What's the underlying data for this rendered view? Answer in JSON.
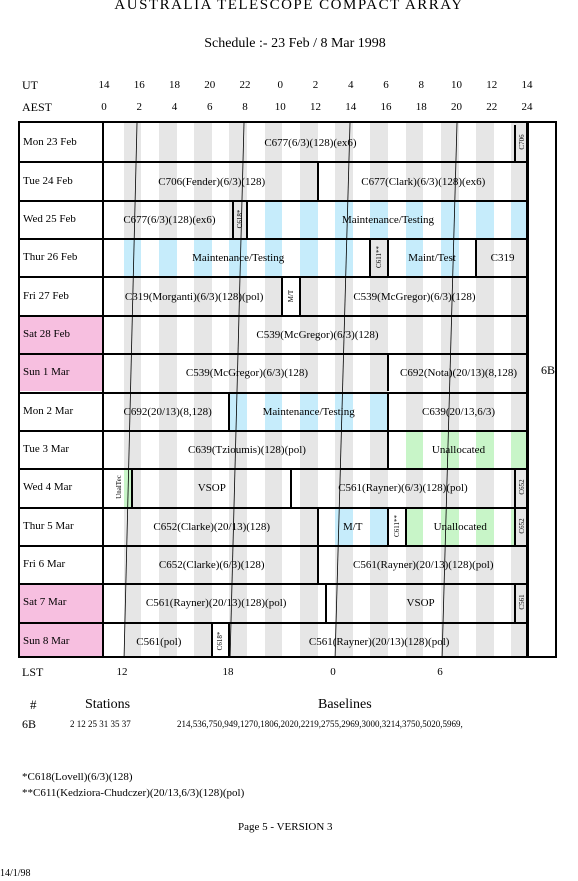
{
  "header": {
    "title": "AUSTRALIA TELESCOPE COMPACT ARRAY",
    "subtitle": "Schedule :- 23 Feb / 8 Mar 1998"
  },
  "axes": {
    "ut_label": "UT",
    "aest_label": "AEST",
    "lst_label": "LST",
    "ut_ticks": [
      "14",
      "16",
      "18",
      "20",
      "22",
      "0",
      "2",
      "4",
      "6",
      "8",
      "10",
      "12",
      "14"
    ],
    "aest_ticks": [
      "0",
      "2",
      "4",
      "6",
      "8",
      "10",
      "12",
      "14",
      "16",
      "18",
      "20",
      "22",
      "24"
    ],
    "lst_ticks": [
      "12",
      "18",
      "0",
      "6"
    ]
  },
  "config_label": "6B",
  "days": [
    {
      "label": "Mon  23  Feb",
      "weekend": false
    },
    {
      "label": "Tue  24  Feb",
      "weekend": false
    },
    {
      "label": "Wed  25  Feb",
      "weekend": false
    },
    {
      "label": "Thur  26  Feb",
      "weekend": false
    },
    {
      "label": "Fri   27  Feb",
      "weekend": false
    },
    {
      "label": "Sat   28  Feb",
      "weekend": true
    },
    {
      "label": "Sun    1  Mar",
      "weekend": true
    },
    {
      "label": "Mon   2  Mar",
      "weekend": false
    },
    {
      "label": "Tue    3  Mar",
      "weekend": false
    },
    {
      "label": "Wed   4  Mar",
      "weekend": false
    },
    {
      "label": "Thur  5  Mar",
      "weekend": false
    },
    {
      "label": "Fri    6  Mar",
      "weekend": false
    },
    {
      "label": "Sat    7  Mar",
      "weekend": true
    },
    {
      "label": "Sun    8  Mar",
      "weekend": true
    }
  ],
  "blocks": [
    {
      "row": 0,
      "start": 0,
      "end": 23.2,
      "label": "C677(6/3)(128)(ex6)",
      "kind": "normal"
    },
    {
      "row": 0,
      "start": 23.2,
      "end": 24,
      "label": "C706",
      "kind": "rot"
    },
    {
      "row": 1,
      "start": 0,
      "end": 12,
      "label": "C706(Fender)(6/3)(128)",
      "kind": "normal"
    },
    {
      "row": 1,
      "start": 12,
      "end": 24,
      "label": "C677(Clark)(6/3)(128)(ex6)",
      "kind": "normal"
    },
    {
      "row": 2,
      "start": 0,
      "end": 7.2,
      "label": "C677(6/3)(128)(ex6)",
      "kind": "normal"
    },
    {
      "row": 2,
      "start": 7.2,
      "end": 8,
      "label": "C618*",
      "kind": "rot"
    },
    {
      "row": 2,
      "start": 8,
      "end": 24,
      "label": "Maintenance/Testing",
      "kind": "maint"
    },
    {
      "row": 3,
      "start": 0,
      "end": 15,
      "label": "Maintenance/Testing",
      "kind": "maint"
    },
    {
      "row": 3,
      "start": 15,
      "end": 16,
      "label": "C611**",
      "kind": "rot"
    },
    {
      "row": 3,
      "start": 16,
      "end": 21,
      "label": "Maint/Test",
      "kind": "maint"
    },
    {
      "row": 3,
      "start": 21,
      "end": 24,
      "label": "C319",
      "kind": "normal"
    },
    {
      "row": 4,
      "start": 0,
      "end": 10,
      "label": "C319(Morganti)(6/3)(128)(pol)",
      "kind": "normal"
    },
    {
      "row": 4,
      "start": 10,
      "end": 11,
      "label": "M/T",
      "kind": "rotmaint"
    },
    {
      "row": 4,
      "start": 11,
      "end": 24,
      "label": "C539(McGregor)(6/3)(128)",
      "kind": "normal"
    },
    {
      "row": 5,
      "start": 0,
      "end": 24,
      "label": "C539(McGregor)(6/3)(128)",
      "kind": "normal"
    },
    {
      "row": 6,
      "start": 0,
      "end": 16,
      "label": "C539(McGregor)(6/3)(128)",
      "kind": "normal"
    },
    {
      "row": 6,
      "start": 16,
      "end": 24,
      "label": "C692(Nota)(20/13)(8,128)",
      "kind": "normal"
    },
    {
      "row": 7,
      "start": 0,
      "end": 7,
      "label": "C692(20/13)(8,128)",
      "kind": "normal"
    },
    {
      "row": 7,
      "start": 7,
      "end": 16,
      "label": "Maintenance/Testing",
      "kind": "maint"
    },
    {
      "row": 7,
      "start": 16,
      "end": 24,
      "label": "C639(20/13,6/3)",
      "kind": "normal"
    },
    {
      "row": 8,
      "start": 0,
      "end": 16,
      "label": "C639(Tzioumis)(128)(pol)",
      "kind": "normal"
    },
    {
      "row": 8,
      "start": 16,
      "end": 24,
      "label": "Unallocated",
      "kind": "unalloc"
    },
    {
      "row": 9,
      "start": 0,
      "end": 1.5,
      "label": "UnalTec",
      "kind": "rotunalloc"
    },
    {
      "row": 9,
      "start": 1.5,
      "end": 10.5,
      "label": "VSOP",
      "kind": "normal"
    },
    {
      "row": 9,
      "start": 10.5,
      "end": 23.2,
      "label": "C561(Rayner)(6/3)(128)(pol)",
      "kind": "normal"
    },
    {
      "row": 9,
      "start": 23.2,
      "end": 24,
      "label": "C652",
      "kind": "rot"
    },
    {
      "row": 10,
      "start": 0,
      "end": 12,
      "label": "C652(Clarke)(20/13)(128)",
      "kind": "normal"
    },
    {
      "row": 10,
      "start": 12,
      "end": 16,
      "label": "M/T",
      "kind": "maint"
    },
    {
      "row": 10,
      "start": 16,
      "end": 17,
      "label": "C611**",
      "kind": "rot"
    },
    {
      "row": 10,
      "start": 17,
      "end": 23.2,
      "label": "Unallocated",
      "kind": "unalloc"
    },
    {
      "row": 10,
      "start": 23.2,
      "end": 24,
      "label": "C652",
      "kind": "rot"
    },
    {
      "row": 11,
      "start": 0,
      "end": 12,
      "label": "C652(Clarke)(6/3)(128)",
      "kind": "normal"
    },
    {
      "row": 11,
      "start": 12,
      "end": 24,
      "label": "C561(Rayner)(20/13)(128)(pol)",
      "kind": "normal"
    },
    {
      "row": 12,
      "start": 0,
      "end": 12.5,
      "label": "C561(Rayner)(20/13)(128)(pol)",
      "kind": "normal"
    },
    {
      "row": 12,
      "start": 12.5,
      "end": 23.2,
      "label": "VSOP",
      "kind": "normal"
    },
    {
      "row": 12,
      "start": 23.2,
      "end": 24,
      "label": "C561",
      "kind": "rot"
    },
    {
      "row": 13,
      "start": 0,
      "end": 6,
      "label": "C561(pol)",
      "kind": "normal"
    },
    {
      "row": 13,
      "start": 6,
      "end": 7,
      "label": "C618*",
      "kind": "rot"
    },
    {
      "row": 13,
      "start": 7,
      "end": 24,
      "label": "C561(Rayner)(20/13)(128)(pol)",
      "kind": "normal"
    }
  ],
  "legend": {
    "hash_label": "#",
    "stations_header": "Stations",
    "baselines_header": "Baselines",
    "config": "6B",
    "stations": "2 12 25 31 35 37",
    "baselines": "214,536,750,949,1270,1806,2020,2219,2755,2969,3000,3214,3750,5020,5969,"
  },
  "footnotes": [
    "*C618(Lovell)(6/3)(128)",
    "**C611(Kedziora-Chudczer)(20/13,6/3)(128)(pol)"
  ],
  "page_label": "Page 5 - VERSION 3",
  "date_stamp": "14/1/98",
  "colors": {
    "weekend": "#f7bfe0",
    "maintenance": "#c6ecfb",
    "unallocated": "#c8f5c8",
    "shade": "#e6e6e6"
  }
}
